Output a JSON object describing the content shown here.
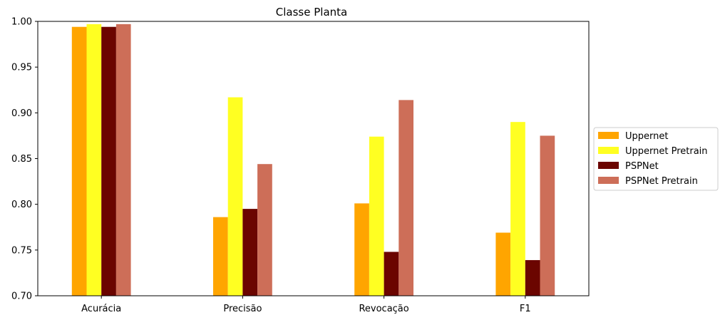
{
  "chart_data": {
    "type": "bar",
    "title": "Classe Planta",
    "xlabel": "",
    "ylabel": "",
    "categories": [
      "Acurácia",
      "Precisão",
      "Revocação",
      "F1"
    ],
    "ylim": [
      0.7,
      1.0
    ],
    "yticks": [
      0.7,
      0.75,
      0.8,
      0.85,
      0.9,
      0.95,
      1.0
    ],
    "ytick_labels": [
      "0.70",
      "0.75",
      "0.80",
      "0.85",
      "0.90",
      "0.95",
      "1.00"
    ],
    "grid": false,
    "legend_position": "right",
    "series": [
      {
        "name": "Uppernet",
        "color": "#FFA500",
        "values": [
          0.994,
          0.786,
          0.801,
          0.769
        ]
      },
      {
        "name": "Uppernet Pretrain",
        "color": "#FFFF22",
        "values": [
          0.997,
          0.917,
          0.874,
          0.89
        ]
      },
      {
        "name": "PSPNet",
        "color": "#6B0500",
        "values": [
          0.994,
          0.795,
          0.748,
          0.739
        ]
      },
      {
        "name": "PSPNet Pretrain",
        "color": "#CD6E58",
        "values": [
          0.997,
          0.844,
          0.914,
          0.875
        ]
      }
    ]
  }
}
